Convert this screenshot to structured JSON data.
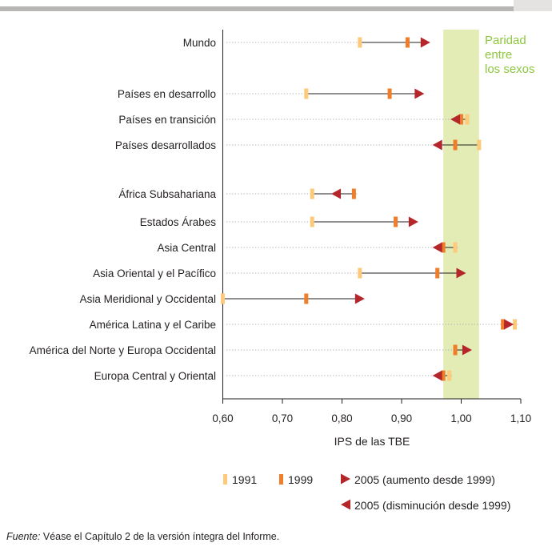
{
  "footnote": {
    "label": "Fuente:",
    "text": "Véase el Capítulo 2 de la versión íntegra del Informe."
  },
  "colors": {
    "y1991": "#fdc97a",
    "y1999": "#ef7d29",
    "y2005": "#b5262a",
    "parity_band": "#e3ecb4",
    "parity_text": "#8dc63f",
    "topbar": "#b8b6b4",
    "dotted_line": "#a7a9ac"
  },
  "chart_data": {
    "type": "dumbbell",
    "xlabel": "IPS de las TBE",
    "xlim": [
      0.6,
      1.1
    ],
    "xticks": [
      0.6,
      0.7,
      0.8,
      0.9,
      1.0,
      1.1
    ],
    "xtick_labels": [
      "0,60",
      "0,70",
      "0,80",
      "0,90",
      "1,00",
      "1,10"
    ],
    "parity_band": {
      "from": 0.97,
      "to": 1.03,
      "label_lines": [
        "Paridad",
        "entre",
        "los sexos"
      ]
    },
    "rows": [
      {
        "label": "Mundo",
        "v1991": 0.83,
        "v1999": 0.91,
        "v2005": 0.94,
        "dir": "up"
      },
      {
        "label": "Países en desarrollo",
        "v1991": 0.74,
        "v1999": 0.88,
        "v2005": 0.93,
        "dir": "up"
      },
      {
        "label": "Países en transición",
        "v1991": 1.01,
        "v1999": 1.0,
        "v2005": 0.99,
        "dir": "down"
      },
      {
        "label": "Países desarrollados",
        "v1991": 1.03,
        "v1999": 0.99,
        "v2005": 0.96,
        "dir": "down"
      },
      {
        "label": "África Subsahariana",
        "v1991": 0.75,
        "v1999": 0.82,
        "v2005": 0.79,
        "dir": "down"
      },
      {
        "label": "Estados Árabes",
        "v1991": 0.75,
        "v1999": 0.89,
        "v2005": 0.92,
        "dir": "up"
      },
      {
        "label": "Asia Central",
        "v1991": 0.99,
        "v1999": 0.97,
        "v2005": 0.96,
        "dir": "down"
      },
      {
        "label": "Asia Oriental y el Pacífico",
        "v1991": 0.83,
        "v1999": 0.96,
        "v2005": 1.0,
        "dir": "up"
      },
      {
        "label": "Asia Meridional y Occidental",
        "v1991": 0.6,
        "v1999": 0.74,
        "v2005": 0.83,
        "dir": "up"
      },
      {
        "label": "América Latina y el Caribe",
        "v1991": 1.09,
        "v1999": 1.07,
        "v2005": 1.08,
        "dir": "up"
      },
      {
        "label": "América del Norte y Europa Occidental",
        "v1991": 0.99,
        "v1999": 0.99,
        "v2005": 1.01,
        "dir": "up"
      },
      {
        "label": "Europa Central y Oriental",
        "v1991": 0.98,
        "v1999": 0.97,
        "v2005": 0.96,
        "dir": "down"
      }
    ],
    "legend": {
      "y1991": "1991",
      "y1999": "1999",
      "up": "2005 (aumento desde 1999)",
      "down": "2005 (disminución desde 1999)"
    }
  }
}
